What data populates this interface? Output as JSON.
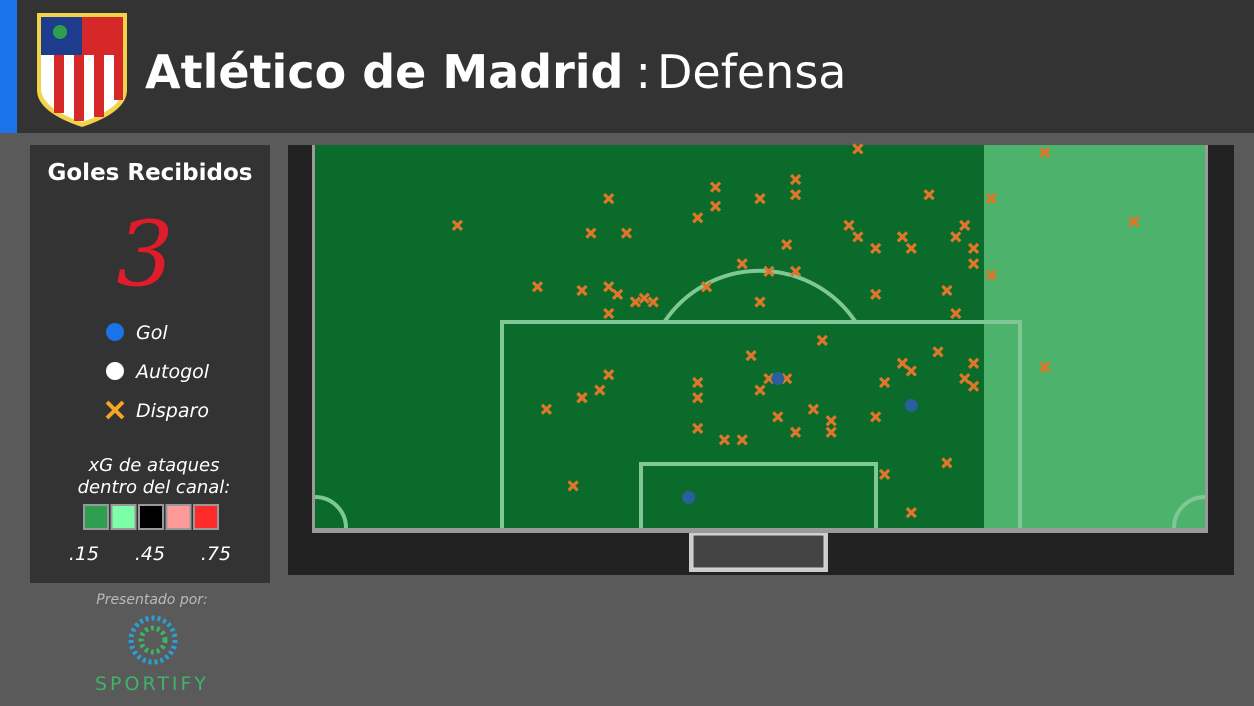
{
  "header": {
    "title": "Atlético de Madrid",
    "separator": ":",
    "subtitle": "Defensa"
  },
  "panel": {
    "title": "Goles Recibidos",
    "goals_conceded": "3",
    "legend": [
      {
        "label": "Gol",
        "color": "#1a73e8"
      },
      {
        "label": "Autogol",
        "color": "#ffffff"
      },
      {
        "label": "Disparo",
        "color": "#f5a623"
      }
    ],
    "scale_title": [
      "xG de ataques",
      "dentro del canal:"
    ],
    "scale_colors": [
      "#2e9e50",
      "#7dffa9",
      "#000000",
      "#ff9a9a",
      "#ff2a2a"
    ],
    "scale_labels": [
      ".15",
      ".45",
      ".75"
    ]
  },
  "sponsor": {
    "caption": "Presentado por:",
    "name": "SPORTIFY"
  },
  "shots": {
    "color": "#e0762a",
    "x": [
      61,
      82,
      16,
      33,
      45,
      54,
      50,
      54,
      45,
      43,
      69,
      76,
      92,
      31,
      35,
      60,
      61,
      53,
      63,
      66,
      67,
      72,
      73,
      74,
      74,
      48,
      51,
      54,
      25,
      30,
      33,
      34,
      36,
      37,
      38,
      44,
      50,
      63,
      71,
      76,
      33,
      72,
      57,
      49,
      70,
      66,
      67,
      74,
      73,
      74,
      64,
      82,
      33,
      43,
      43,
      53,
      51,
      50,
      30,
      30,
      32,
      26,
      56,
      52,
      63,
      58,
      58,
      43,
      54,
      48,
      46,
      71,
      64,
      29,
      67
    ],
    "y": [
      99,
      98,
      79,
      86,
      89,
      91,
      86,
      87,
      84,
      81,
      87,
      86,
      80,
      77,
      77,
      79,
      76,
      74,
      73,
      76,
      73,
      76,
      79,
      73,
      69,
      69,
      67,
      67,
      63,
      62,
      63,
      61,
      59,
      60,
      59,
      63,
      59,
      61,
      62,
      66,
      56,
      56,
      49,
      45,
      46,
      43,
      41,
      43,
      39,
      37,
      38,
      42,
      40,
      38,
      34,
      39,
      39,
      36,
      34,
      34,
      36,
      31,
      31,
      29,
      29,
      28,
      25,
      26,
      25,
      23,
      23,
      17,
      14,
      11,
      4
    ]
  },
  "goals": {
    "color": "#2a5f9e",
    "x": [
      52,
      67,
      42
    ],
    "y": [
      39,
      32,
      8
    ]
  }
}
